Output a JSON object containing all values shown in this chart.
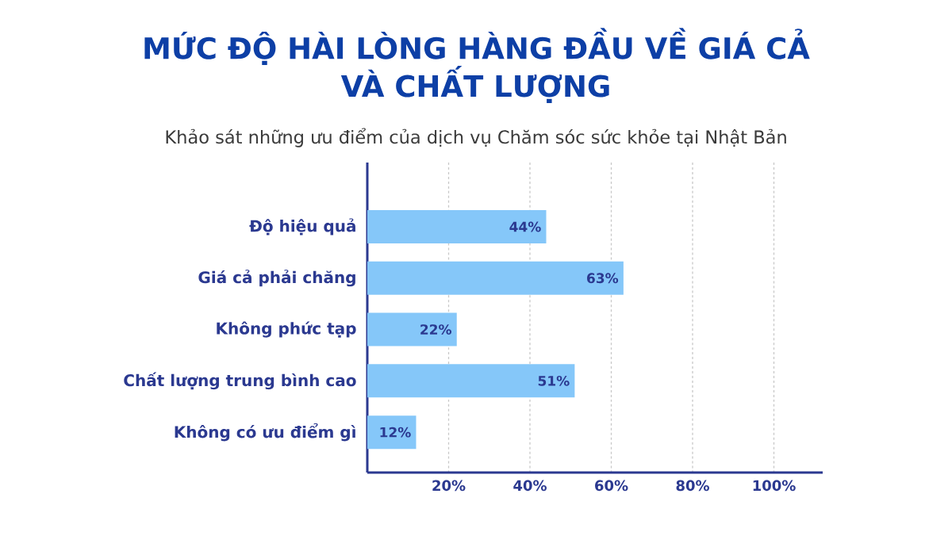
{
  "chart_data": {
    "type": "bar",
    "orientation": "horizontal",
    "title": "MỨC ĐỘ HÀI LÒNG HÀNG ĐẦU VỀ GIÁ CẢ VÀ CHẤT LƯỢNG",
    "subtitle": "Khảo sát những ưu điểm của dịch vụ Chăm sóc sức khỏe tại Nhật Bản",
    "categories": [
      "Độ hiệu quả",
      "Giá cả phải chăng",
      "Không phức tạp",
      "Chất lượng trung bình cao",
      "Không có ưu điểm gì"
    ],
    "values": [
      44,
      63,
      22,
      51,
      12
    ],
    "value_labels": [
      "44%",
      "63%",
      "22%",
      "51%",
      "12%"
    ],
    "color": "#85c7f9",
    "xlim": [
      0,
      112
    ],
    "xticks": [
      {
        "value": 20,
        "label": "20%"
      },
      {
        "value": 40,
        "label": "40%"
      },
      {
        "value": 60,
        "label": "60%"
      },
      {
        "value": 80,
        "label": "80%"
      },
      {
        "value": 100,
        "label": "100%"
      }
    ],
    "grid": "x"
  }
}
